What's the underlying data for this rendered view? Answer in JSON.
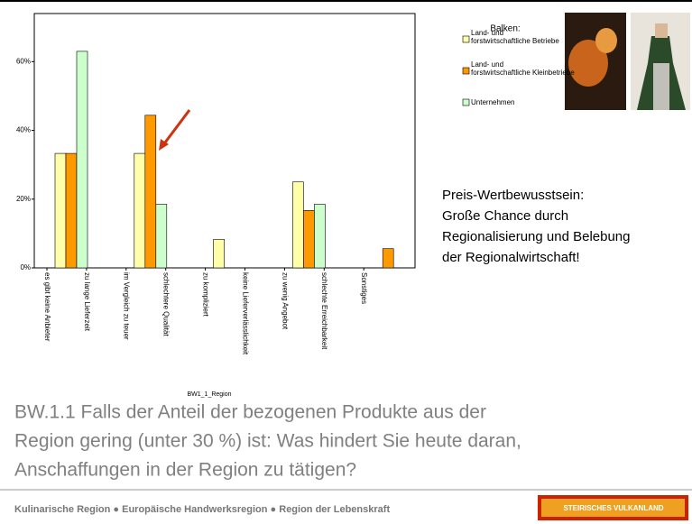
{
  "chart_data": {
    "type": "bar",
    "categories": [
      "es gibt keine Anbieter",
      "zu lange Lieferzeit",
      "im Vergleich zu teuer",
      "schlechtere Qualität",
      "zu kompliziert",
      "keine Lieferverlässlichkeit",
      "zu wenig Angebot",
      "schlechte Erreichbarkeit",
      "Sonstiges"
    ],
    "series": [
      {
        "name": "Land- und forstwirtschaftliche Betriebe",
        "color": "#ffffaa",
        "values": [
          33.3,
          0,
          33.3,
          0,
          8.3,
          0,
          25,
          0,
          0
        ]
      },
      {
        "name": "Land- und forstwirtschaftliche Kleinbetriebe",
        "color": "#ff9900",
        "values": [
          33.3,
          0,
          44.4,
          0,
          0,
          0,
          16.7,
          0,
          5.6
        ]
      },
      {
        "name": "Unternehmen",
        "color": "#ccffcc",
        "values": [
          63,
          0,
          18.5,
          0,
          0,
          0,
          18.5,
          0,
          0
        ]
      }
    ],
    "legend_title": "Balken:",
    "xlabel": "BW1_1_Region",
    "ylim": [
      0,
      74
    ],
    "yticks": [
      {
        "value": 0,
        "label": "0%"
      },
      {
        "value": 20,
        "label": "20%"
      },
      {
        "value": 40,
        "label": "40%"
      },
      {
        "value": 60,
        "label": "60%"
      }
    ]
  },
  "slide": {
    "annotation": [
      "Preis-Wertbewusstsein:",
      "Große Chance durch",
      "Regionalisierung und Belebung",
      "der Regionalwirtschaft!"
    ],
    "question": [
      "BW.1.1 Falls der Anteil der bezogenen Produkte aus der",
      "Region gering (unter 30 %) ist: Was hindert Sie heute daran,",
      "Anschaffungen in der Region zu tätigen?"
    ],
    "footer": "Kulinarische Region ● Europäische Handwerksregion ● Region der Lebenskraft",
    "logo": "STEIRISCHES VULKANLAND"
  }
}
